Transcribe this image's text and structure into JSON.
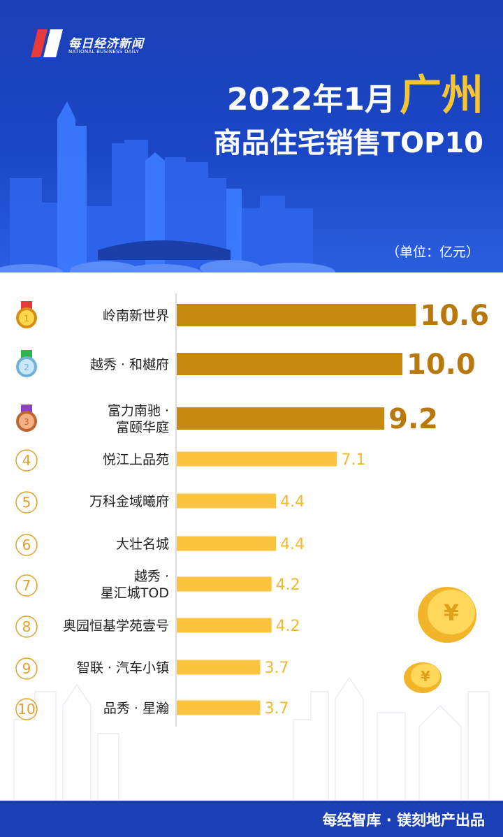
{
  "brand": {
    "name_cn": "每日经济新闻",
    "name_en": "NATIONAL BUSINESS DAILY"
  },
  "title": {
    "line1_prefix": "2022年1月",
    "line1_city": "广州",
    "line2": "商品住宅销售TOP10"
  },
  "unit": "（单位：亿元）",
  "footer": "每经智库 · 镁刻地产出品",
  "colors": {
    "header_blue": "#1b3fb5",
    "top3_bar": "#c8890f",
    "other_bar": "#fcc33f",
    "city_gold": "#f7c531"
  },
  "chart_data": {
    "type": "bar",
    "orientation": "horizontal",
    "unit": "亿元",
    "categories": [
      "岭南新世界",
      "越秀·和樾府",
      "富力南驰·富颐华庭",
      "悦江上品苑",
      "万科金域曦府",
      "大壮名城",
      "越秀·星汇城TOD",
      "奥园恒基学苑壹号",
      "智联·汽车小镇",
      "品秀·星瀚"
    ],
    "label_lines": [
      [
        "岭南新世界"
      ],
      [
        "越秀 · 和樾府"
      ],
      [
        "富力南驰 ·",
        "富颐华庭"
      ],
      [
        "悦江上品苑"
      ],
      [
        "万科金域曦府"
      ],
      [
        "大壮名城"
      ],
      [
        "越秀 ·",
        "星汇城TOD"
      ],
      [
        "奥园恒基学苑壹号"
      ],
      [
        "智联 · 汽车小镇"
      ],
      [
        "品秀 · 星瀚"
      ]
    ],
    "values": [
      10.6,
      10.0,
      9.2,
      7.1,
      4.4,
      4.4,
      4.2,
      4.2,
      3.7,
      3.7
    ],
    "value_labels": [
      "10.6",
      "10.0",
      "9.2",
      "7.1",
      "4.4",
      "4.4",
      "4.2",
      "4.2",
      "3.7",
      "3.7"
    ],
    "ranks": [
      "1",
      "2",
      "3",
      "4",
      "5",
      "6",
      "7",
      "8",
      "9",
      "10"
    ],
    "medal_icons": [
      "gold-medal-icon",
      "silver-medal-icon",
      "bronze-medal-icon"
    ]
  }
}
